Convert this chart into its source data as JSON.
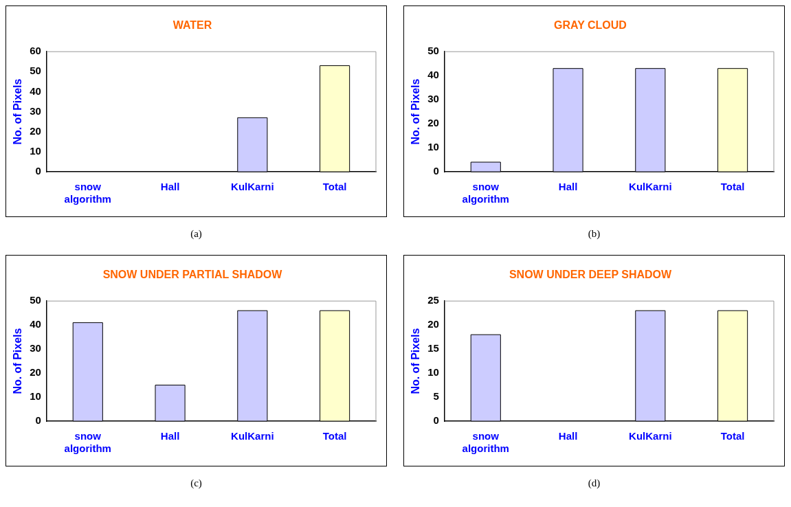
{
  "chart_data": [
    {
      "type": "bar",
      "title": "WATER",
      "ylabel": "No. of Pixels",
      "categories": [
        "snow algorithm",
        "Hall",
        "KulKarni",
        "Total"
      ],
      "values": [
        0,
        0,
        27,
        53
      ],
      "colors": [
        "#ccccff",
        "#ccccff",
        "#ccccff",
        "#ffffcc"
      ],
      "ylim": [
        0,
        60
      ],
      "yticks": [
        0,
        10,
        20,
        30,
        40,
        50,
        60
      ],
      "grid": false,
      "legend": false,
      "annotations": [
        "(a)"
      ]
    },
    {
      "type": "bar",
      "title": "GRAY CLOUD",
      "ylabel": "No. of Pixels",
      "categories": [
        "snow algorithm",
        "Hall",
        "KulKarni",
        "Total"
      ],
      "values": [
        4,
        43,
        43,
        43
      ],
      "colors": [
        "#ccccff",
        "#ccccff",
        "#ccccff",
        "#ffffcc"
      ],
      "ylim": [
        0,
        50
      ],
      "yticks": [
        0,
        10,
        20,
        30,
        40,
        50
      ],
      "grid": false,
      "legend": false,
      "annotations": [
        "(b)"
      ]
    },
    {
      "type": "bar",
      "title": "SNOW UNDER PARTIAL SHADOW",
      "ylabel": "No. of Pixels",
      "categories": [
        "snow algorithm",
        "Hall",
        "KulKarni",
        "Total"
      ],
      "values": [
        41,
        15,
        46,
        46
      ],
      "colors": [
        "#ccccff",
        "#ccccff",
        "#ccccff",
        "#ffffcc"
      ],
      "ylim": [
        0,
        50
      ],
      "yticks": [
        0,
        10,
        20,
        30,
        40,
        50
      ],
      "grid": false,
      "legend": false,
      "annotations": [
        "(c)"
      ]
    },
    {
      "type": "bar",
      "title": "SNOW UNDER DEEP SHADOW",
      "ylabel": "No. of Pixels",
      "categories": [
        "snow algorithm",
        "Hall",
        "KulKarni",
        "Total"
      ],
      "values": [
        18,
        0,
        23,
        23
      ],
      "colors": [
        "#ccccff",
        "#ccccff",
        "#ccccff",
        "#ffffcc"
      ],
      "ylim": [
        0,
        25
      ],
      "yticks": [
        0,
        5,
        10,
        15,
        20,
        25
      ],
      "grid": false,
      "legend": false,
      "annotations": [
        "(d)"
      ]
    }
  ]
}
